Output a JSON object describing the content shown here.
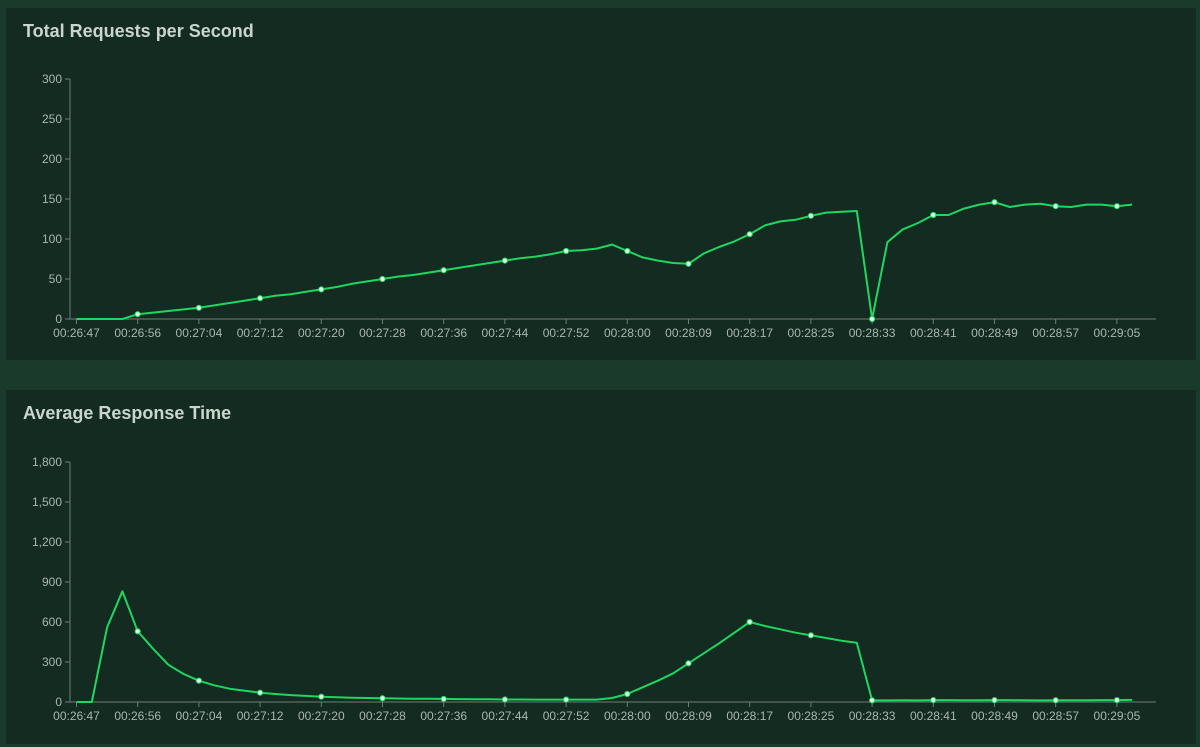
{
  "colors": {
    "series": "#1ed760",
    "axis": "#6f7f75",
    "tick_text": "#a9b8ae",
    "title": "#c9d6cd",
    "marker_fill": "#dfffe9",
    "panel_bg": "#132b20",
    "page_bg": "#1a3a2c"
  },
  "chart_data": [
    {
      "type": "line",
      "title": "Total Requests per Second",
      "xlabel": "",
      "ylabel": "",
      "ylim": [
        0,
        300
      ],
      "y_ticks": [
        "0",
        "50",
        "100",
        "150",
        "200",
        "250",
        "300"
      ],
      "y_tick_values": [
        0,
        50,
        100,
        150,
        200,
        250,
        300
      ],
      "x_tick_labels": [
        "00:26:47",
        "00:26:56",
        "00:27:04",
        "00:27:12",
        "00:27:20",
        "00:27:28",
        "00:27:36",
        "00:27:44",
        "00:27:52",
        "00:28:00",
        "00:28:09",
        "00:28:17",
        "00:28:25",
        "00:28:33",
        "00:28:41",
        "00:28:49",
        "00:28:57",
        "00:29:05"
      ],
      "grid": false,
      "legend": "none",
      "series": [
        {
          "values": [
            0,
            0,
            0,
            0,
            6,
            8,
            10,
            12,
            14,
            17,
            20,
            23,
            26,
            29,
            31,
            34,
            37,
            40,
            44,
            47,
            50,
            53,
            55,
            58,
            61,
            64,
            67,
            70,
            73,
            76,
            78,
            81,
            85,
            86,
            88,
            93,
            85,
            77,
            73,
            70,
            69,
            82,
            90,
            97,
            106,
            117,
            122,
            124,
            129,
            133,
            134,
            135,
            0,
            96,
            112,
            120,
            130,
            130,
            138,
            143,
            146,
            140,
            143,
            144,
            141,
            140,
            143,
            143,
            141,
            143
          ],
          "markers": [
            4,
            8,
            12,
            16,
            20,
            24,
            28,
            32,
            36,
            40,
            44,
            48,
            52,
            56,
            60,
            64,
            68
          ]
        }
      ]
    },
    {
      "type": "line",
      "title": "Average Response Time",
      "xlabel": "",
      "ylabel": "",
      "ylim": [
        0,
        1800
      ],
      "y_ticks": [
        "0",
        "300",
        "600",
        "900",
        "1,200",
        "1,500",
        "1,800"
      ],
      "y_tick_values": [
        0,
        300,
        600,
        900,
        1200,
        1500,
        1800
      ],
      "x_tick_labels": [
        "00:26:47",
        "00:26:56",
        "00:27:04",
        "00:27:12",
        "00:27:20",
        "00:27:28",
        "00:27:36",
        "00:27:44",
        "00:27:52",
        "00:28:00",
        "00:28:09",
        "00:28:17",
        "00:28:25",
        "00:28:33",
        "00:28:41",
        "00:28:49",
        "00:28:57",
        "00:29:05"
      ],
      "grid": false,
      "legend": "none",
      "series": [
        {
          "values": [
            0,
            0,
            560,
            830,
            530,
            400,
            280,
            210,
            160,
            125,
            100,
            85,
            70,
            60,
            52,
            46,
            40,
            36,
            32,
            30,
            28,
            26,
            25,
            24,
            23,
            22,
            21,
            20,
            19,
            19,
            18,
            18,
            18,
            18,
            18,
            30,
            60,
            110,
            160,
            215,
            290,
            365,
            440,
            520,
            600,
            570,
            545,
            520,
            500,
            480,
            460,
            445,
            12,
            12,
            13,
            12,
            14,
            14,
            13,
            13,
            14,
            14,
            13,
            12,
            13,
            13,
            13,
            14,
            14,
            16
          ],
          "markers": [
            4,
            8,
            12,
            16,
            20,
            24,
            28,
            32,
            36,
            40,
            44,
            48,
            52,
            56,
            60,
            64,
            68
          ]
        }
      ]
    }
  ]
}
